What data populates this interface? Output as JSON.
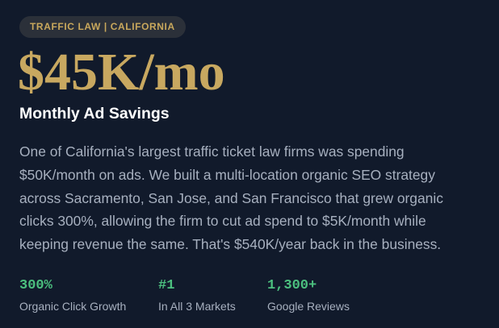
{
  "tag": "TRAFFIC LAW | CALIFORNIA",
  "headline": "$45K/mo",
  "subtitle": "Monthly Ad Savings",
  "description": [
    "One of California's largest traffic ticket law firms was spending",
    "$50K/month on ads. We built a multi-location organic SEO strategy",
    "across Sacramento, San Jose, and San Francisco that grew organic",
    "clicks 300%, allowing the firm to cut ad spend to $5K/month while",
    "keeping revenue the same. That's $540K/year back in the business."
  ],
  "stats": [
    {
      "value": "300%",
      "label": "Organic Click Growth"
    },
    {
      "value": "#1",
      "label": "In All 3 Markets"
    },
    {
      "value": "1,300+",
      "label": "Google Reviews"
    }
  ]
}
